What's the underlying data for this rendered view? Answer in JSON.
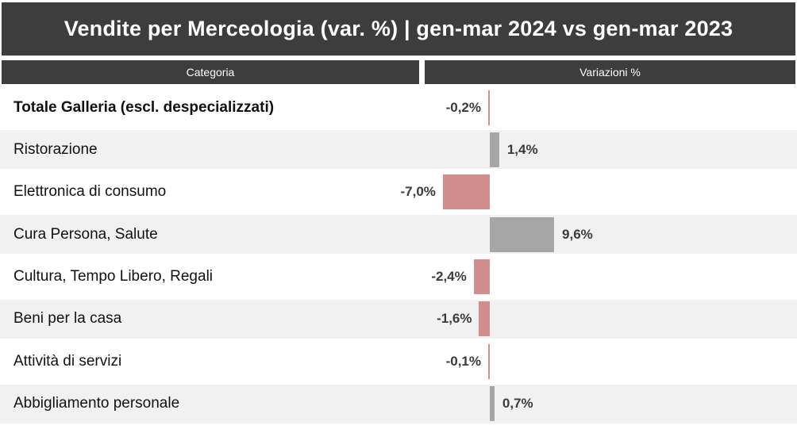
{
  "title": "Vendite per Merceologia (var. %) | gen-mar 2024 vs gen-mar 2023",
  "columns": {
    "category": "Categoria",
    "variation": "Variazioni %"
  },
  "colors": {
    "header_bg": "#3d3d3d",
    "header_text": "#ffffff",
    "positive_bar": "#a6a6a6",
    "negative_bar": "#d18e8c",
    "alt_row_bg": "#f1f1f1",
    "row_bg": "#ffffff",
    "value_label": "#3b3b3b",
    "category_text": "#111111"
  },
  "chart_data": {
    "type": "bar",
    "orientation": "horizontal-diverging",
    "title": "Vendite per Merceologia (var. %) | gen-mar 2024 vs gen-mar 2023",
    "xlabel": "Variazioni %",
    "ylabel": "Categoria",
    "unit": "%",
    "baseline": 0,
    "xlim": [
      -10,
      46
    ],
    "grid": false,
    "legend": false,
    "categories": [
      "Totale Galleria (escl. despecializzati)",
      "Ristorazione",
      "Elettronica di consumo",
      "Cura Persona, Salute",
      "Cultura, Tempo Libero, Regali",
      "Beni per la casa",
      "Attività di servizi",
      "Abbigliamento personale"
    ],
    "values": [
      -0.2,
      1.4,
      -7.0,
      9.6,
      -2.4,
      -1.6,
      -0.1,
      0.7
    ],
    "value_labels": [
      "-0,2%",
      "1,4%",
      "-7,0%",
      "9,6%",
      "-2,4%",
      "-1,6%",
      "-0,1%",
      "0,7%"
    ],
    "emphasized_category": "Totale Galleria (escl. despecializzati)"
  }
}
